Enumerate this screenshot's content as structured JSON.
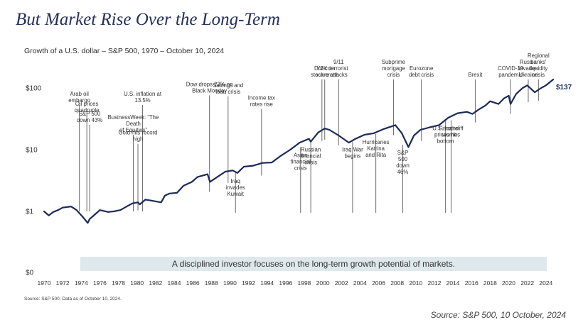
{
  "page": {
    "title": "But Market Rise Over the Long-Term",
    "source": "Source: S&P 500, 10 October, 2024"
  },
  "chart_data": {
    "type": "line",
    "subtitle": "Growth of a U.S. dollar –  S&P 500, 1970 – October 10, 2024",
    "source_note": "Source: S&P 500. Data as of October 10, 2024.",
    "banner": "A disciplined investor focuses on the long-term growth potential of markets.",
    "end_label": "$137",
    "line_color": "#1b2a57",
    "banner_color": "#dfe8ec",
    "y_scale": "log",
    "y_ticks": [
      {
        "value": 0,
        "label": "$0"
      },
      {
        "value": 1,
        "label": "$1"
      },
      {
        "value": 10,
        "label": "$10"
      },
      {
        "value": 100,
        "label": "$100"
      }
    ],
    "x_ticks": [
      1970,
      1972,
      1974,
      1976,
      1978,
      1980,
      1982,
      1984,
      1986,
      1988,
      1990,
      1992,
      1994,
      1996,
      1998,
      2000,
      2002,
      2004,
      2006,
      2008,
      2010,
      2012,
      2014,
      2016,
      2018,
      2020,
      2022,
      2024
    ],
    "grid": false,
    "series": [
      {
        "x": [
          1970.0,
          1970.5,
          1971.0,
          1971.5,
          1972.0,
          1972.9,
          1973.5,
          1974.2,
          1974.7,
          1974.9,
          1975.5,
          1976.0,
          1976.9,
          1977.5,
          1978.2,
          1978.9,
          1979.5,
          1980.1,
          1980.3,
          1980.9,
          1981.5,
          1982.6,
          1983.0,
          1983.5,
          1984.3,
          1985.0,
          1985.9,
          1986.5,
          1987.6,
          1987.85,
          1988.5,
          1989.5,
          1990.3,
          1990.8,
          1991.5,
          1992.5,
          1993.5,
          1994.5,
          1995.5,
          1996.5,
          1997.5,
          1998.5,
          1998.7,
          1999.5,
          2000.2,
          2000.7,
          2001.7,
          2002.8,
          2003.5,
          2004.5,
          2005.5,
          2006.5,
          2007.8,
          2008.5,
          2009.2,
          2009.8,
          2010.5,
          2011.5,
          2012.5,
          2013.5,
          2014.5,
          2015.5,
          2016.1,
          2016.8,
          2017.5,
          2018.0,
          2018.9,
          2019.5,
          2020.0,
          2020.2,
          2020.8,
          2021.5,
          2022.0,
          2022.8,
          2023.5,
          2024.0,
          2024.78
        ],
        "y": [
          1.0,
          0.86,
          0.98,
          1.05,
          1.15,
          1.2,
          1.05,
          0.8,
          0.65,
          0.75,
          0.9,
          1.05,
          0.98,
          1.0,
          1.05,
          1.2,
          1.35,
          1.4,
          1.3,
          1.55,
          1.5,
          1.4,
          1.8,
          1.95,
          2.0,
          2.6,
          3.0,
          3.6,
          4.0,
          3.0,
          3.5,
          4.4,
          4.6,
          4.2,
          5.3,
          5.5,
          6.1,
          6.2,
          8.0,
          10.0,
          13.0,
          15.0,
          13.5,
          19.0,
          22.0,
          21.0,
          17.0,
          13.0,
          15.0,
          17.5,
          18.5,
          21.5,
          25.0,
          18.5,
          11.0,
          17.0,
          21.0,
          23.0,
          25.0,
          33.0,
          39.0,
          41.0,
          38.0,
          45.0,
          52.0,
          61.0,
          55.0,
          68.0,
          75.0,
          55.0,
          80.0,
          100.0,
          110.0,
          85.0,
          100.0,
          110.0,
          137.0
        ],
        "color": "#1b2a57"
      }
    ],
    "events": [
      {
        "year": 1973.8,
        "top": 1.3,
        "label": [
          "Arab oil",
          "embargo"
        ],
        "side": "above"
      },
      {
        "year": 1974.6,
        "top": 1.1,
        "label": [
          "Oil prices",
          "quadruple"
        ],
        "side": "above"
      },
      {
        "year": 1974.9,
        "top": 1.0,
        "label": [
          "S&P 500",
          "down 43%"
        ],
        "side": "above"
      },
      {
        "year": 1979.6,
        "top": 1.2,
        "label": [
          "BusinessWeek: “The",
          "Death",
          "of Equities”"
        ],
        "side": "above"
      },
      {
        "year": 1980.1,
        "top": 1.5,
        "label": [
          "Gold hits record",
          "high"
        ],
        "side": "above"
      },
      {
        "year": 1980.6,
        "top": 1.3,
        "label": [
          "U.S. inflation at",
          "13.5%"
        ],
        "side": "above"
      },
      {
        "year": 1987.8,
        "top": 3.0,
        "label": [
          "Dow drops 23% on",
          "Black Monday"
        ],
        "side": "above"
      },
      {
        "year": 1989.8,
        "top": 4.2,
        "label": [
          "Savings and",
          "loan crisis"
        ],
        "side": "above"
      },
      {
        "year": 1990.6,
        "top": 4.2,
        "label": [
          "Iraq",
          "invades",
          "Kuwait"
        ],
        "side": "below"
      },
      {
        "year": 1993.4,
        "top": 5.5,
        "label": [
          "Income tax",
          "rates rise"
        ],
        "side": "above"
      },
      {
        "year": 1997.6,
        "top": 11.0,
        "label": [
          "Asian",
          "financial",
          "crisis"
        ],
        "side": "below"
      },
      {
        "year": 1998.7,
        "top": 13.5,
        "label": [
          "Russian",
          "financial",
          "crisis"
        ],
        "side": "below"
      },
      {
        "year": 1999.9,
        "top": 20.0,
        "label": [
          "Y2K",
          "scare"
        ],
        "side": "above"
      },
      {
        "year": 2000.2,
        "top": 21.0,
        "label": [
          "Dot-com",
          "stock crash"
        ],
        "side": "above"
      },
      {
        "year": 2001.7,
        "top": 17.0,
        "label": [
          "9/11",
          "terrorist",
          "attacks"
        ],
        "side": "above"
      },
      {
        "year": 2003.2,
        "top": 13.5,
        "label": [
          "Iraq War",
          "begins"
        ],
        "side": "below"
      },
      {
        "year": 2005.7,
        "top": 18.0,
        "label": [
          "Hurricanes",
          "Katrina",
          "and Rita"
        ],
        "side": "below"
      },
      {
        "year": 2007.6,
        "top": 25.0,
        "label": [
          "Subprime",
          "mortgage",
          "crisis"
        ],
        "side": "above"
      },
      {
        "year": 2008.6,
        "top": 12.0,
        "label": [
          "S&P",
          "500",
          "down",
          "46%"
        ],
        "side": "below"
      },
      {
        "year": 2010.6,
        "top": 20.0,
        "label": [
          "Eurozone",
          "debt crisis"
        ],
        "side": "above"
      },
      {
        "year": 2013.2,
        "top": 30.0,
        "label": [
          "U.S. home",
          "prices hit",
          "bottom"
        ],
        "side": "below"
      },
      {
        "year": 2013.8,
        "top": 30.0,
        "label": [
          "Fiscal cliff",
          "worries"
        ],
        "side": "below"
      },
      {
        "year": 2016.4,
        "top": 40.0,
        "label": [
          "Brexit"
        ],
        "side": "above"
      },
      {
        "year": 2020.2,
        "top": 55.0,
        "label": [
          "COVID-19",
          "pandemic"
        ],
        "side": "above"
      },
      {
        "year": 2022.1,
        "top": 85.0,
        "label": [
          "Russia",
          "invades",
          "Ukraine"
        ],
        "side": "above"
      },
      {
        "year": 2023.2,
        "top": 90.0,
        "label": [
          "Regional",
          "banks'",
          "liquidity",
          "crisis"
        ],
        "side": "above"
      }
    ]
  }
}
